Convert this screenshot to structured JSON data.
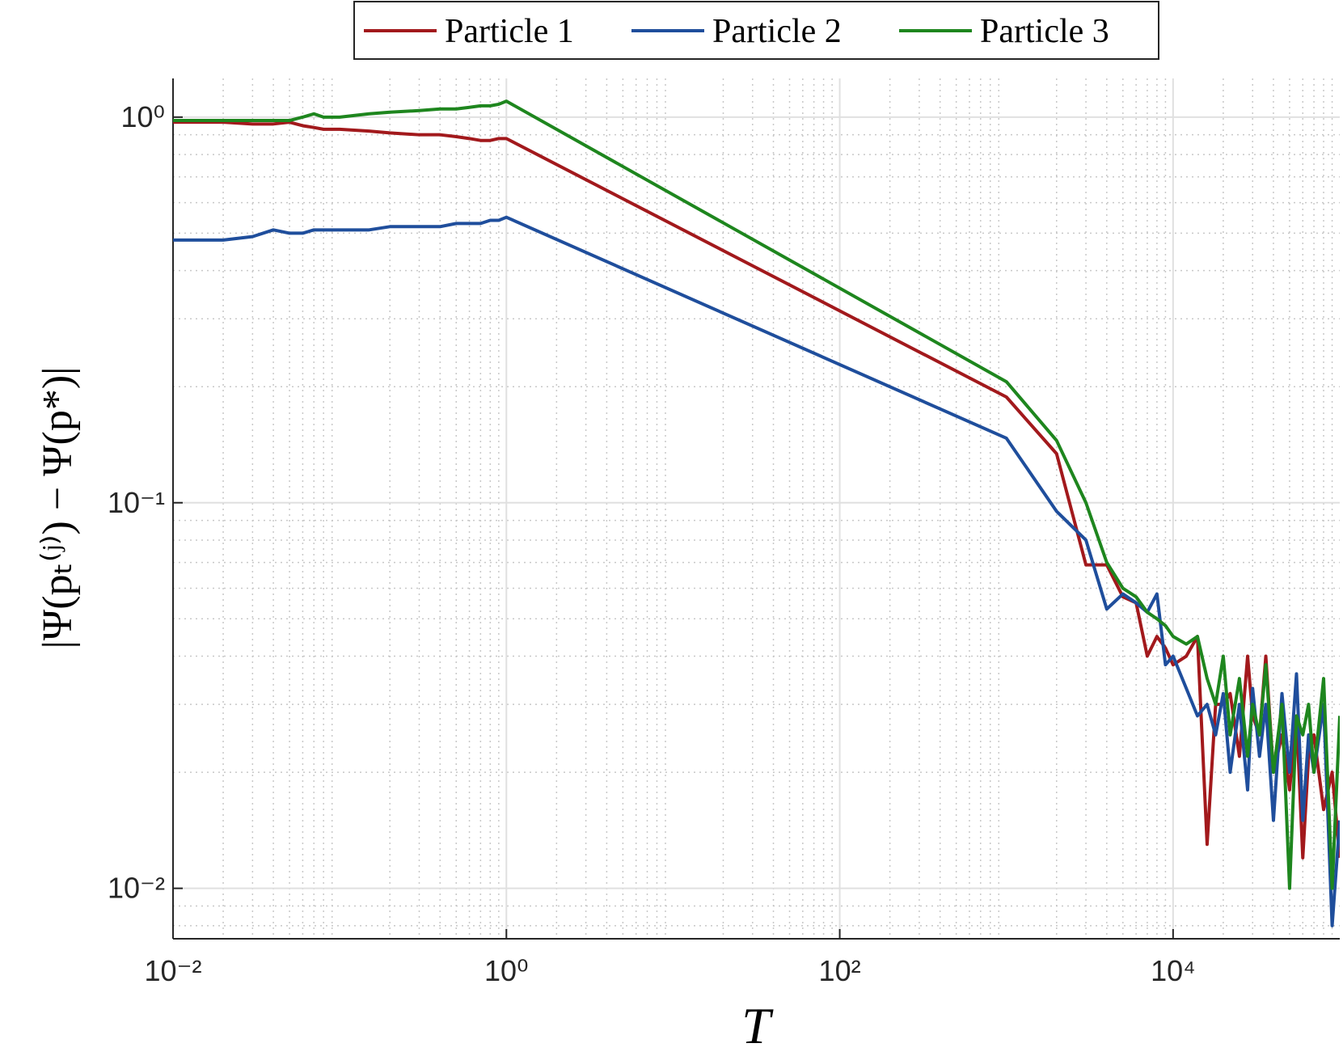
{
  "chart_data": {
    "type": "line",
    "x_label": "T",
    "y_label": "|Ψ(pₜ⁽ʲ⁾) − Ψ(p*)|",
    "x": [
      0.01,
      0.02,
      0.03,
      0.04,
      0.05,
      0.06,
      0.07,
      0.08,
      0.1,
      0.15,
      0.2,
      0.3,
      0.4,
      0.5,
      0.6,
      0.7,
      0.8,
      0.9,
      1,
      1000,
      2000,
      3000,
      4000,
      5000,
      6000,
      7000,
      8000,
      9000,
      10000,
      12000,
      14000,
      16000,
      18000,
      20000,
      22000,
      25000,
      28000,
      30000,
      33000,
      36000,
      40000,
      45000,
      50000,
      55000,
      60000,
      65000,
      70000,
      80000,
      90000,
      100000
    ],
    "series": [
      {
        "name": "Particle 1",
        "color": "#a2191c",
        "values": [
          0.97,
          0.97,
          0.96,
          0.96,
          0.97,
          0.95,
          0.94,
          0.93,
          0.93,
          0.92,
          0.91,
          0.9,
          0.9,
          0.89,
          0.88,
          0.87,
          0.87,
          0.88,
          0.88,
          0.188,
          0.134,
          0.069,
          0.069,
          0.057,
          0.055,
          0.04,
          0.045,
          0.042,
          0.038,
          0.04,
          0.045,
          0.013,
          0.03,
          0.03,
          0.032,
          0.022,
          0.04,
          0.028,
          0.025,
          0.04,
          0.02,
          0.025,
          0.018,
          0.028,
          0.012,
          0.022,
          0.025,
          0.016,
          0.02,
          0.012
        ]
      },
      {
        "name": "Particle 2",
        "color": "#1f4e9c",
        "values": [
          0.48,
          0.48,
          0.49,
          0.51,
          0.5,
          0.5,
          0.51,
          0.51,
          0.51,
          0.51,
          0.52,
          0.52,
          0.52,
          0.53,
          0.53,
          0.53,
          0.54,
          0.54,
          0.55,
          0.147,
          0.095,
          0.08,
          0.053,
          0.058,
          0.055,
          0.052,
          0.058,
          0.038,
          0.04,
          0.033,
          0.028,
          0.03,
          0.025,
          0.032,
          0.02,
          0.03,
          0.018,
          0.033,
          0.022,
          0.03,
          0.015,
          0.032,
          0.02,
          0.036,
          0.015,
          0.025,
          0.02,
          0.03,
          0.008,
          0.015
        ]
      },
      {
        "name": "Particle 3",
        "color": "#1e861e",
        "values": [
          0.98,
          0.98,
          0.98,
          0.98,
          0.98,
          1.0,
          1.02,
          1.0,
          1.0,
          1.02,
          1.03,
          1.04,
          1.05,
          1.05,
          1.06,
          1.07,
          1.07,
          1.08,
          1.1,
          0.206,
          0.145,
          0.1,
          0.07,
          0.06,
          0.057,
          0.052,
          0.05,
          0.048,
          0.045,
          0.043,
          0.045,
          0.035,
          0.03,
          0.04,
          0.025,
          0.035,
          0.022,
          0.03,
          0.025,
          0.038,
          0.02,
          0.03,
          0.01,
          0.028,
          0.025,
          0.03,
          0.02,
          0.035,
          0.01,
          0.028
        ]
      }
    ],
    "xlim": [
      0.01,
      100000
    ],
    "ylim": [
      0.0074,
      1.26
    ],
    "xticks": [
      {
        "value": 0.01,
        "label": "10⁻²"
      },
      {
        "value": 1,
        "label": "10⁰"
      },
      {
        "value": 100,
        "label": "10²"
      },
      {
        "value": 10000,
        "label": "10⁴"
      }
    ],
    "yticks": [
      {
        "value": 0.01,
        "label": "10⁻²"
      },
      {
        "value": 0.1,
        "label": "10⁻¹"
      },
      {
        "value": 1,
        "label": "10⁰"
      }
    ],
    "x_log": true,
    "y_log": true,
    "grid": true,
    "minor_grid": true,
    "legend": "top"
  }
}
